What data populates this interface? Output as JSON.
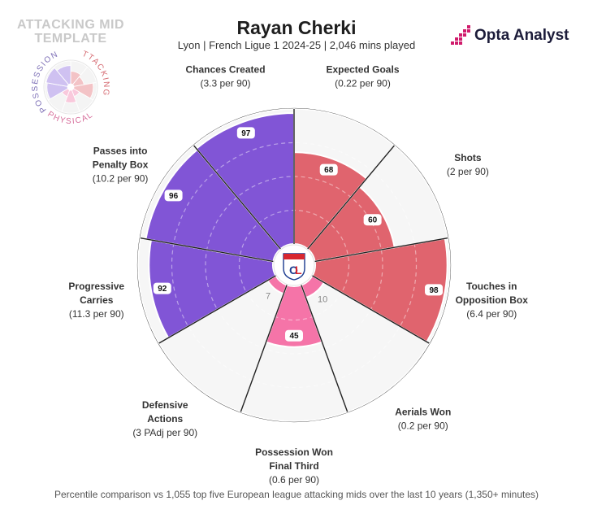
{
  "template": {
    "title_line1": "ATTACKING MID",
    "title_line2": "TEMPLATE",
    "legend_labels": [
      "POSSESSION",
      "ATTACKING",
      "PHYSICAL"
    ]
  },
  "header": {
    "title": "Rayan Cherki",
    "subtitle": "Lyon | French Ligue 1 2024-25 | 2,046 mins played"
  },
  "brand": {
    "name": "Opta Analyst"
  },
  "footnote": "Percentile comparison vs 1,055 top five European league attacking mids over the last 10 years (1,350+ minutes)",
  "colors": {
    "possession": "#8155d6",
    "attacking": "#e0646e",
    "physical": "#f574a8",
    "background_sector": "#f6f6f6",
    "grid": "#d8d8d8",
    "outline": "#222222"
  },
  "chart_data": {
    "type": "polar-bar",
    "title": "Rayan Cherki",
    "scale": [
      0,
      100
    ],
    "categories": [
      {
        "label_lines": [
          "Expected Goals"
        ],
        "sub": "(0.22 per 90)",
        "value": 68,
        "group": "attacking"
      },
      {
        "label_lines": [
          "Shots"
        ],
        "sub": "(2 per 90)",
        "value": 60,
        "group": "attacking"
      },
      {
        "label_lines": [
          "Touches in",
          "Opposition Box"
        ],
        "sub": "(6.4 per 90)",
        "value": 98,
        "group": "attacking"
      },
      {
        "label_lines": [
          "Aerials Won"
        ],
        "sub": "(0.2 per 90)",
        "value": 10,
        "group": "physical"
      },
      {
        "label_lines": [
          "Possession Won",
          "Final Third"
        ],
        "sub": "(0.6 per 90)",
        "value": 45,
        "group": "physical"
      },
      {
        "label_lines": [
          "Defensive",
          "Actions"
        ],
        "sub": "(3 PAdj per 90)",
        "value": 7,
        "group": "physical"
      },
      {
        "label_lines": [
          "Progressive",
          "Carries"
        ],
        "sub": "(11.3 per 90)",
        "value": 92,
        "group": "possession"
      },
      {
        "label_lines": [
          "Passes into",
          "Penalty Box"
        ],
        "sub": "(10.2 per 90)",
        "value": 96,
        "group": "possession"
      },
      {
        "label_lines": [
          "Chances Created"
        ],
        "sub": "(3.3 per 90)",
        "value": 97,
        "group": "possession"
      }
    ]
  }
}
